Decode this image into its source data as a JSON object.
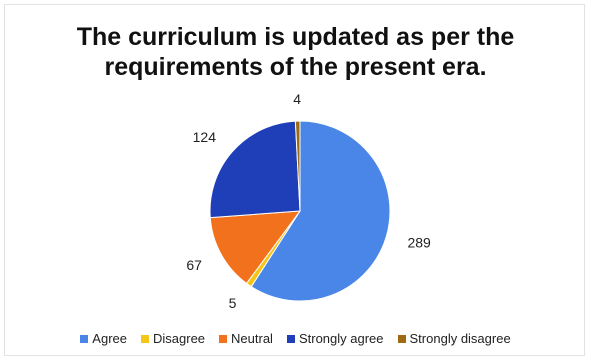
{
  "chart_data": {
    "type": "pie",
    "title": "The curriculum is updated as per the requirements of the present era.",
    "title_lines": [
      "The curriculum is updated as per the",
      "requirements of the present era."
    ],
    "start_angle_deg": 0,
    "direction": "clockwise",
    "legend_position": "bottom",
    "slices": [
      {
        "label": "Agree",
        "value": 289,
        "color": "#4a86e8"
      },
      {
        "label": "Disagree",
        "value": 5,
        "color": "#f5c518"
      },
      {
        "label": "Neutral",
        "value": 67,
        "color": "#f2711c"
      },
      {
        "label": "Strongly agree",
        "value": 124,
        "color": "#1f3fb8"
      },
      {
        "label": "Strongly disagree",
        "value": 4,
        "color": "#9c6b12"
      }
    ]
  }
}
